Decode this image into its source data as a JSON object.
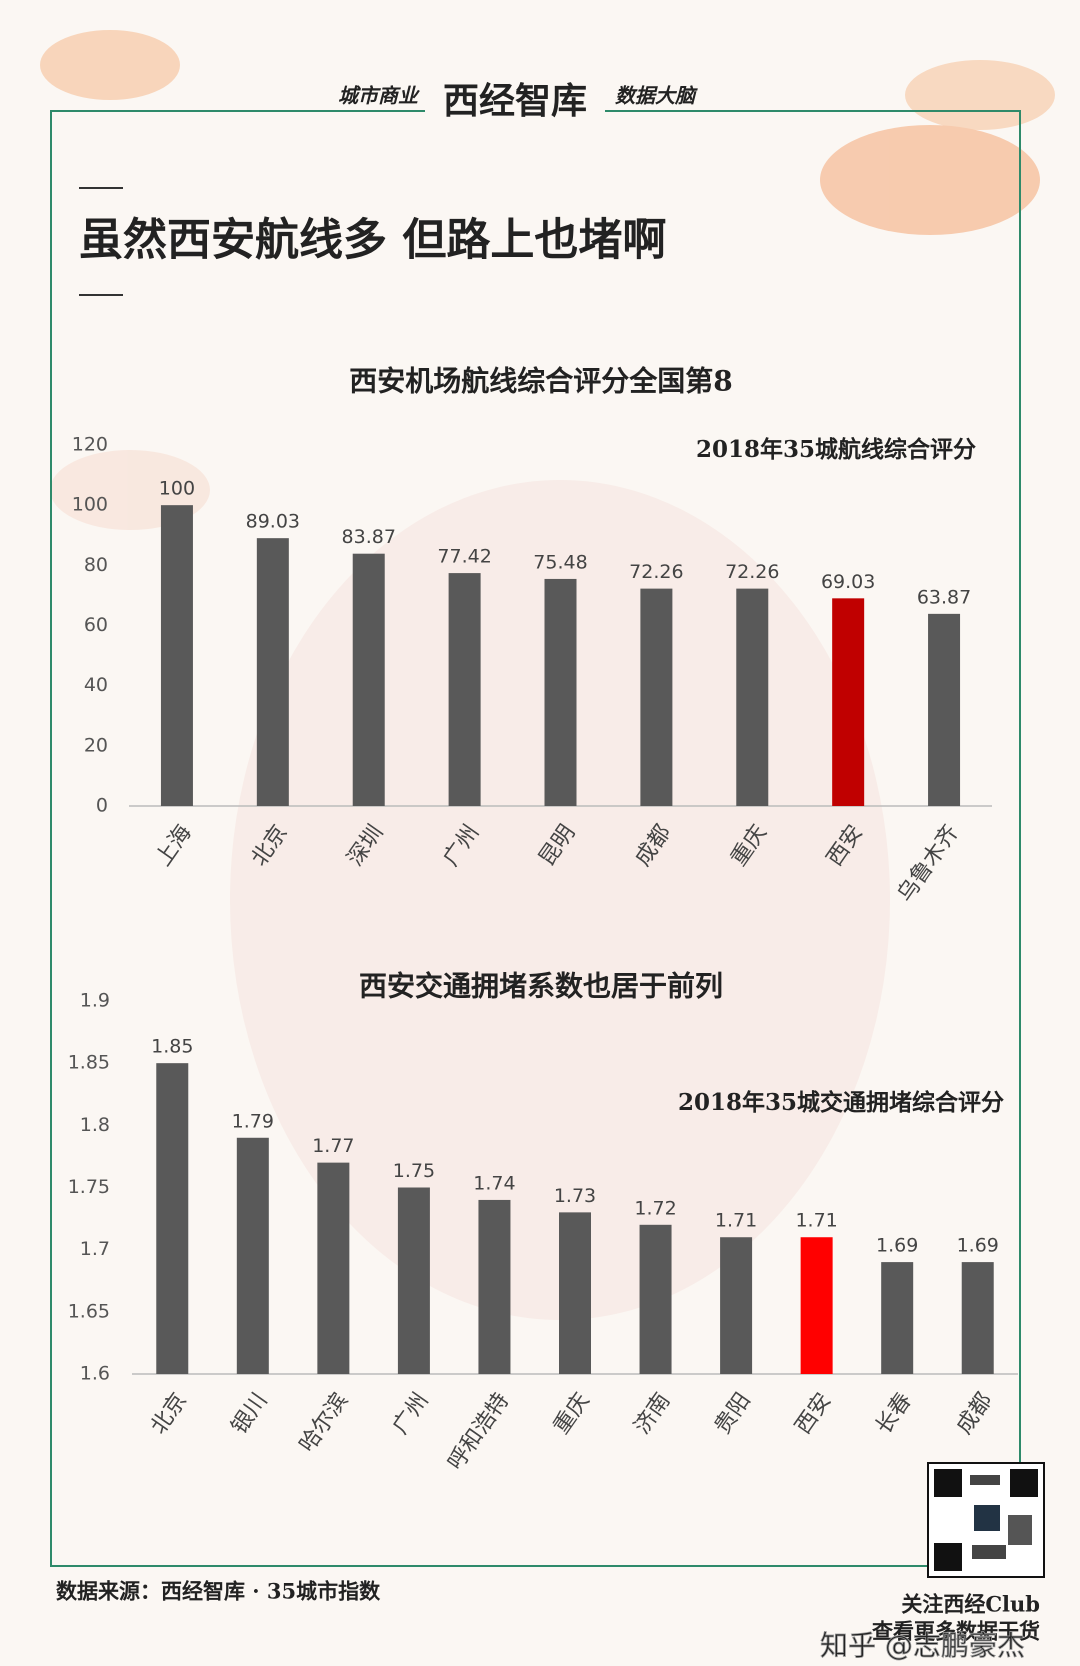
{
  "header": {
    "left": "城市商业",
    "brand": "西经智库",
    "right": "数据大脑"
  },
  "headline": "虽然西安航线多 但路上也堵啊",
  "chart_data": [
    {
      "type": "bar",
      "title": "西安机场航线综合评分全国第8",
      "subtitle": "2018年35城航线综合评分",
      "categories": [
        "上海",
        "北京",
        "深圳",
        "广州",
        "昆明",
        "成都",
        "重庆",
        "西安",
        "乌鲁木齐"
      ],
      "values": [
        100,
        89.03,
        83.87,
        77.42,
        75.48,
        72.26,
        72.26,
        69.03,
        63.87
      ],
      "colors": [
        "#595959",
        "#595959",
        "#595959",
        "#595959",
        "#595959",
        "#595959",
        "#595959",
        "#c00000",
        "#595959"
      ],
      "ylim": [
        0,
        120
      ],
      "yticks": [
        0,
        20,
        40,
        60,
        80,
        100,
        120
      ],
      "grid": false
    },
    {
      "type": "bar",
      "title": "西安交通拥堵系数也居于前列",
      "subtitle": "2018年35城交通拥堵综合评分",
      "categories": [
        "北京",
        "银川",
        "哈尔滨",
        "广州",
        "呼和浩特",
        "重庆",
        "济南",
        "贵阳",
        "西安",
        "长春",
        "成都"
      ],
      "values": [
        1.85,
        1.79,
        1.77,
        1.75,
        1.74,
        1.73,
        1.72,
        1.71,
        1.71,
        1.69,
        1.69
      ],
      "colors": [
        "#595959",
        "#595959",
        "#595959",
        "#595959",
        "#595959",
        "#595959",
        "#595959",
        "#595959",
        "#ff0000",
        "#595959",
        "#595959"
      ],
      "ylim": [
        1.6,
        1.9
      ],
      "yticks": [
        1.6,
        1.65,
        1.7,
        1.75,
        1.8,
        1.85,
        1.9
      ],
      "grid": false
    }
  ],
  "source": "数据来源：西经智库 · 35城市指数",
  "qr_caption": [
    "关注西经Club",
    "查看更多数据干货"
  ],
  "watermark": "知乎 @志鹏豪杰"
}
